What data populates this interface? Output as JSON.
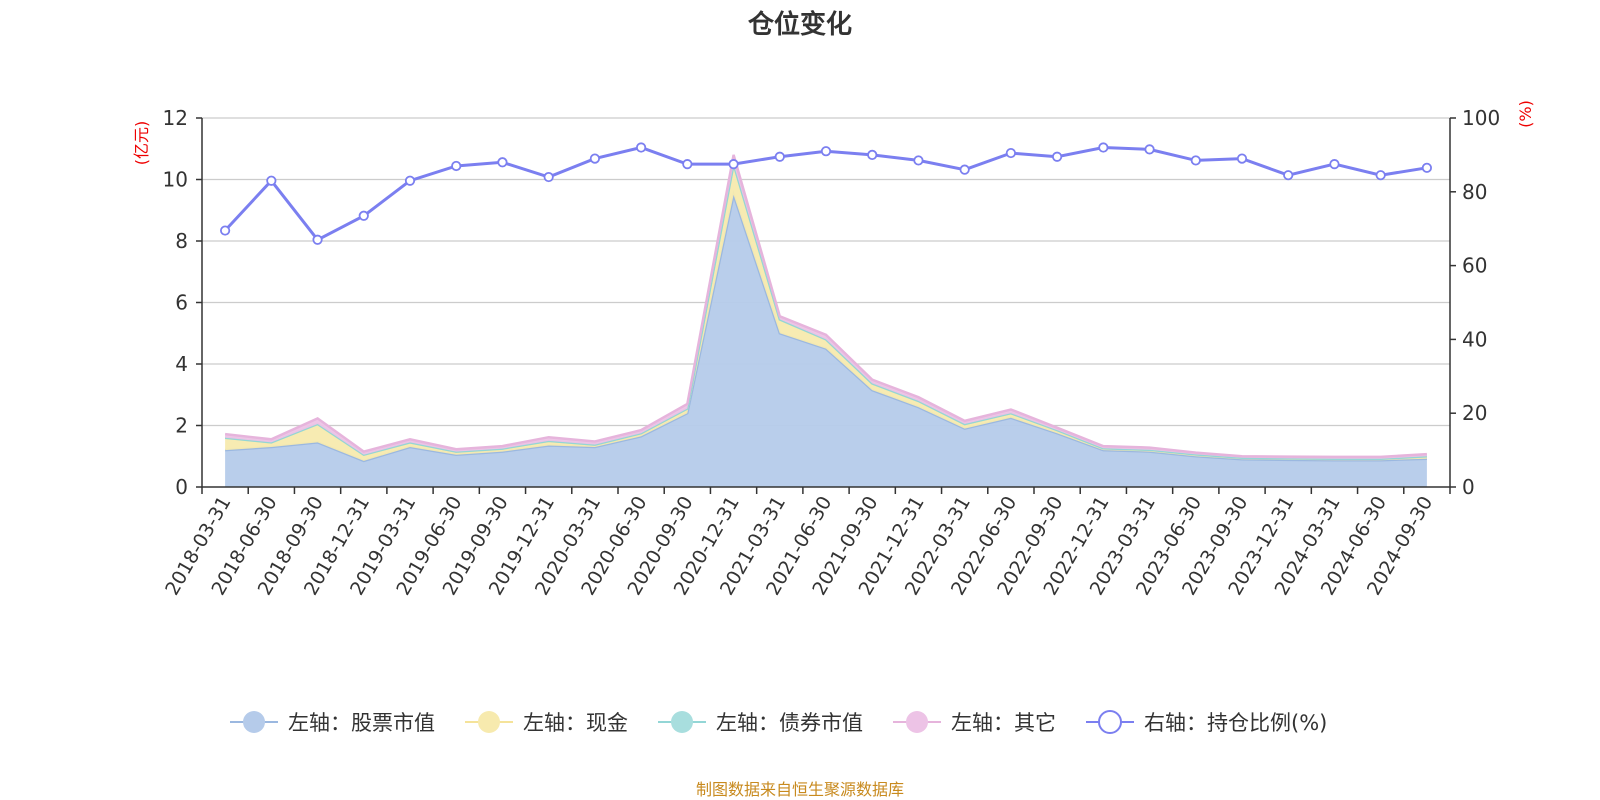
{
  "chart_data": {
    "type": "area",
    "title": "仓位变化",
    "left_axis_unit": "(亿元)",
    "right_axis_unit": "(%)",
    "ylim_left": [
      0,
      12
    ],
    "yticks_left": [
      "0",
      "2",
      "4",
      "6",
      "8",
      "10",
      "12"
    ],
    "ylim_right": [
      0,
      100
    ],
    "yticks_right": [
      "0",
      "20",
      "40",
      "60",
      "80",
      "100"
    ],
    "grid": true,
    "legend_position": "bottom",
    "categories": [
      "2018-03-31",
      "2018-06-30",
      "2018-09-30",
      "2018-12-31",
      "2019-03-31",
      "2019-06-30",
      "2019-09-30",
      "2019-12-31",
      "2020-03-31",
      "2020-06-30",
      "2020-09-30",
      "2020-12-31",
      "2021-03-31",
      "2021-06-30",
      "2021-09-30",
      "2021-12-31",
      "2022-03-31",
      "2022-06-30",
      "2022-09-30",
      "2022-12-31",
      "2023-03-31",
      "2023-06-30",
      "2023-09-30",
      "2023-12-31",
      "2024-03-31",
      "2024-06-30",
      "2024-09-30"
    ],
    "series": [
      {
        "name": "左轴：股票市值",
        "axis": "left",
        "kind": "stacked-area",
        "color": "#9bb8e0",
        "fill": "#b5cbea",
        "values": [
          1.2,
          1.3,
          1.45,
          0.85,
          1.3,
          1.05,
          1.15,
          1.35,
          1.3,
          1.65,
          2.4,
          9.5,
          5.0,
          4.5,
          3.15,
          2.6,
          1.9,
          2.25,
          1.75,
          1.2,
          1.15,
          1.0,
          0.9,
          0.88,
          0.87,
          0.87,
          0.92
        ]
      },
      {
        "name": "左轴：现金",
        "axis": "left",
        "kind": "stacked-area",
        "color": "#f5e39a",
        "fill": "#f7eaae",
        "values": [
          0.4,
          0.15,
          0.6,
          0.2,
          0.15,
          0.1,
          0.1,
          0.15,
          0.08,
          0.1,
          0.15,
          1.0,
          0.45,
          0.3,
          0.22,
          0.2,
          0.15,
          0.15,
          0.1,
          0.06,
          0.06,
          0.06,
          0.05,
          0.05,
          0.05,
          0.05,
          0.08
        ]
      },
      {
        "name": "左轴：债券市值",
        "axis": "left",
        "kind": "stacked-area",
        "color": "#93d6d6",
        "fill": "#a8dede",
        "values": [
          0,
          0,
          0,
          0,
          0,
          0,
          0,
          0,
          0,
          0,
          0,
          0,
          0,
          0,
          0,
          0,
          0,
          0,
          0,
          0,
          0,
          0,
          0,
          0,
          0,
          0,
          0
        ]
      },
      {
        "name": "左轴：其它",
        "axis": "left",
        "kind": "stacked-area",
        "color": "#e6b4dc",
        "fill": "#edc3e6",
        "values": [
          0.12,
          0.1,
          0.18,
          0.1,
          0.1,
          0.08,
          0.08,
          0.12,
          0.1,
          0.1,
          0.15,
          0.3,
          0.1,
          0.15,
          0.12,
          0.12,
          0.1,
          0.12,
          0.08,
          0.07,
          0.07,
          0.06,
          0.05,
          0.06,
          0.06,
          0.06,
          0.07
        ]
      },
      {
        "name": "右轴：持仓比例(%)",
        "axis": "right",
        "kind": "line",
        "color": "#7b7ff0",
        "values": [
          69.5,
          83,
          67,
          73.5,
          83,
          87,
          88,
          84,
          89,
          92,
          87.5,
          87.5,
          89.5,
          91,
          90,
          88.5,
          86,
          90.5,
          89.5,
          92,
          91.5,
          88.5,
          89,
          84.5,
          87.5,
          84.5,
          86.5
        ]
      }
    ]
  },
  "footer": {
    "source": "制图数据来自恒生聚源数据库"
  }
}
